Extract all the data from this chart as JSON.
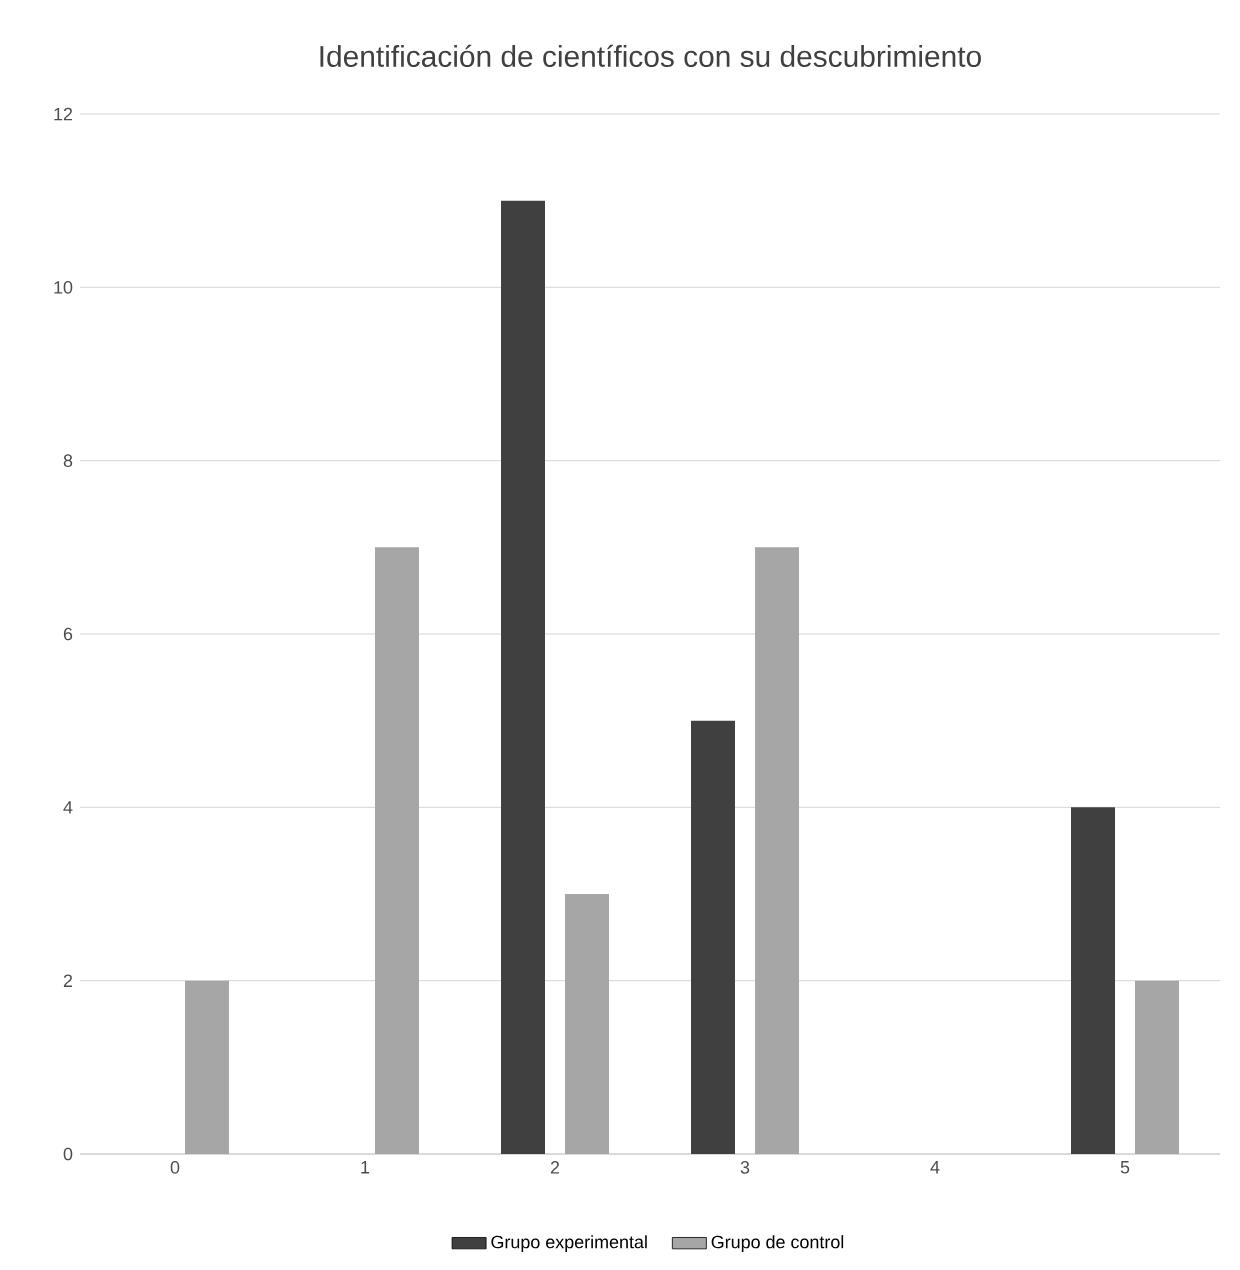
{
  "chart_data": {
    "type": "bar",
    "title": "Identificación de científicos con su descubrimiento",
    "categories": [
      "0",
      "1",
      "2",
      "3",
      "4",
      "5"
    ],
    "series": [
      {
        "name": "Grupo experimental",
        "color": "#404040",
        "values": [
          0,
          0,
          11,
          5,
          0,
          4
        ]
      },
      {
        "name": "Grupo de control",
        "color": "#a6a6a6",
        "values": [
          2,
          7,
          3,
          7,
          0,
          2
        ]
      }
    ],
    "ylim": [
      0,
      12
    ],
    "yticks": [
      0,
      2,
      4,
      6,
      8,
      10,
      12
    ],
    "grid": "y",
    "legend": "bottom"
  }
}
